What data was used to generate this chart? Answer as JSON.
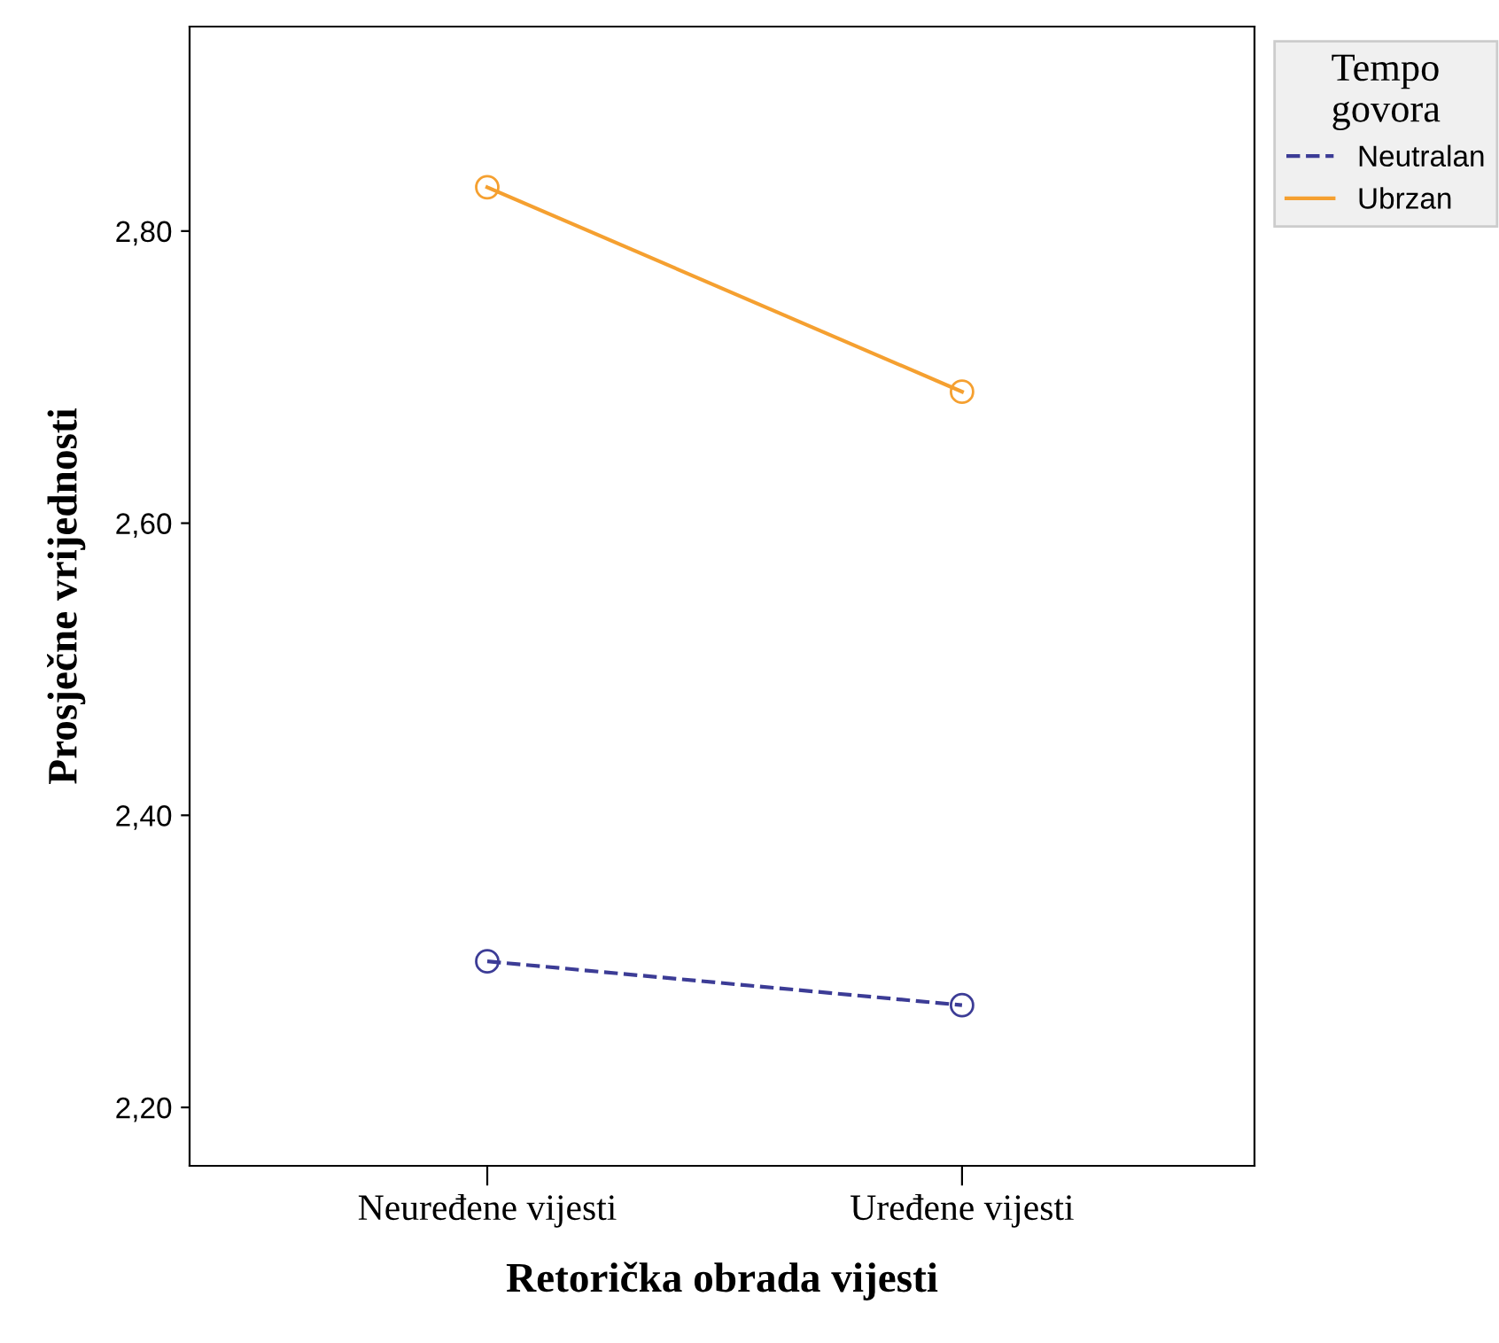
{
  "chart_data": {
    "type": "line",
    "xlabel": "Retorička obrada vijesti",
    "ylabel": "Prosječne vrijednosti",
    "legend_title": "Tempo\ngovora",
    "categories": [
      "Neuređene vijesti",
      "Uređene vijesti"
    ],
    "series": [
      {
        "name": "Neutralan",
        "color": "#3c3c96",
        "values": [
          2.3,
          2.27
        ],
        "line_style": "dashed"
      },
      {
        "name": "Ubrzan",
        "color": "#f5a030",
        "values": [
          2.83,
          2.69
        ],
        "line_style": "solid"
      }
    ],
    "marker": "circle",
    "ylim": [
      2.16,
      2.94
    ],
    "yticks": [
      {
        "value": 2.2,
        "label": "2,20"
      },
      {
        "value": 2.4,
        "label": "2,40"
      },
      {
        "value": 2.6,
        "label": "2,60"
      },
      {
        "value": 2.8,
        "label": "2,80"
      }
    ],
    "grid": false,
    "legend": "top right"
  }
}
